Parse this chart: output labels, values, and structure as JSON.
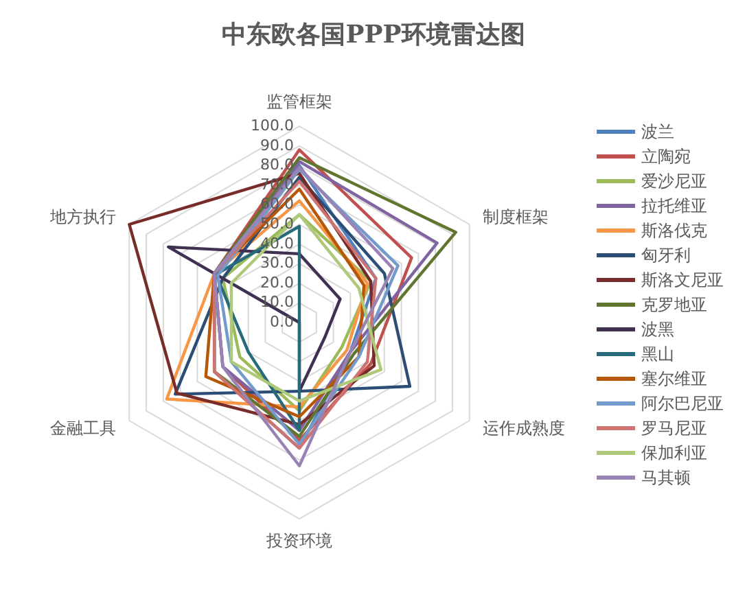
{
  "chart_data": {
    "type": "radar",
    "title": "中东欧各国PPP环境雷达图",
    "categories": [
      "监管框架",
      "制度框架",
      "运作成熟度",
      "投资环境",
      "金融工具",
      "地方执行"
    ],
    "ylim": [
      0,
      100
    ],
    "yticks": [
      {
        "value": 0,
        "label": "0.0"
      },
      {
        "value": 10,
        "label": "10.0"
      },
      {
        "value": 20,
        "label": "20.0"
      },
      {
        "value": 30,
        "label": "30.0"
      },
      {
        "value": 40,
        "label": "40.0"
      },
      {
        "value": 50,
        "label": "50.0"
      },
      {
        "value": 60,
        "label": "60.0"
      },
      {
        "value": 70,
        "label": "70.0"
      },
      {
        "value": 80,
        "label": "80.0"
      },
      {
        "value": 90,
        "label": "90.0"
      },
      {
        "value": 100,
        "label": "100.0"
      }
    ],
    "grid": true,
    "legend": "right",
    "series": [
      {
        "name": "波兰",
        "color": "#4f81bd",
        "values": [
          80,
          45,
          30,
          64,
          50,
          50
        ]
      },
      {
        "name": "立陶宛",
        "color": "#c0504d",
        "values": [
          88,
          66,
          42,
          60,
          45,
          50
        ]
      },
      {
        "name": "爱沙尼亚",
        "color": "#9bbb59",
        "values": [
          55,
          42,
          25,
          45,
          35,
          45
        ]
      },
      {
        "name": "拉托维亚",
        "color": "#8064a2",
        "values": [
          82,
          81,
          30,
          55,
          45,
          50
        ]
      },
      {
        "name": "斯洛伐克",
        "color": "#f79646",
        "values": [
          62,
          40,
          28,
          43,
          78,
          50
        ]
      },
      {
        "name": "匈牙利",
        "color": "#2c4d75",
        "values": [
          74,
          50,
          65,
          35,
          73,
          45
        ]
      },
      {
        "name": "斯洛文尼亚",
        "color": "#772c2a",
        "values": [
          76,
          42,
          44,
          52,
          72,
          100
        ]
      },
      {
        "name": "克罗地亚",
        "color": "#5f7530",
        "values": [
          84,
          92,
          32,
          58,
          50,
          50
        ]
      },
      {
        "name": "波黑",
        "color": "#403152",
        "values": [
          35,
          24,
          15,
          35,
          0,
          77
        ]
      },
      {
        "name": "黑山",
        "color": "#276a7c",
        "values": [
          49,
          0,
          0,
          55,
          30,
          49
        ]
      },
      {
        "name": "塞尔维亚",
        "color": "#b65708",
        "values": [
          68,
          38,
          35,
          48,
          55,
          50
        ]
      },
      {
        "name": "阿尔巴尼亚",
        "color": "#729aca",
        "values": [
          78,
          58,
          35,
          62,
          40,
          48
        ]
      },
      {
        "name": "罗马尼亚",
        "color": "#cd7371",
        "values": [
          72,
          45,
          40,
          64,
          50,
          50
        ]
      },
      {
        "name": "保加利亚",
        "color": "#afc97a",
        "values": [
          55,
          35,
          48,
          40,
          40,
          40
        ]
      },
      {
        "name": "马其顿",
        "color": "#9983b5",
        "values": [
          79,
          55,
          30,
          73,
          45,
          50
        ]
      }
    ]
  }
}
